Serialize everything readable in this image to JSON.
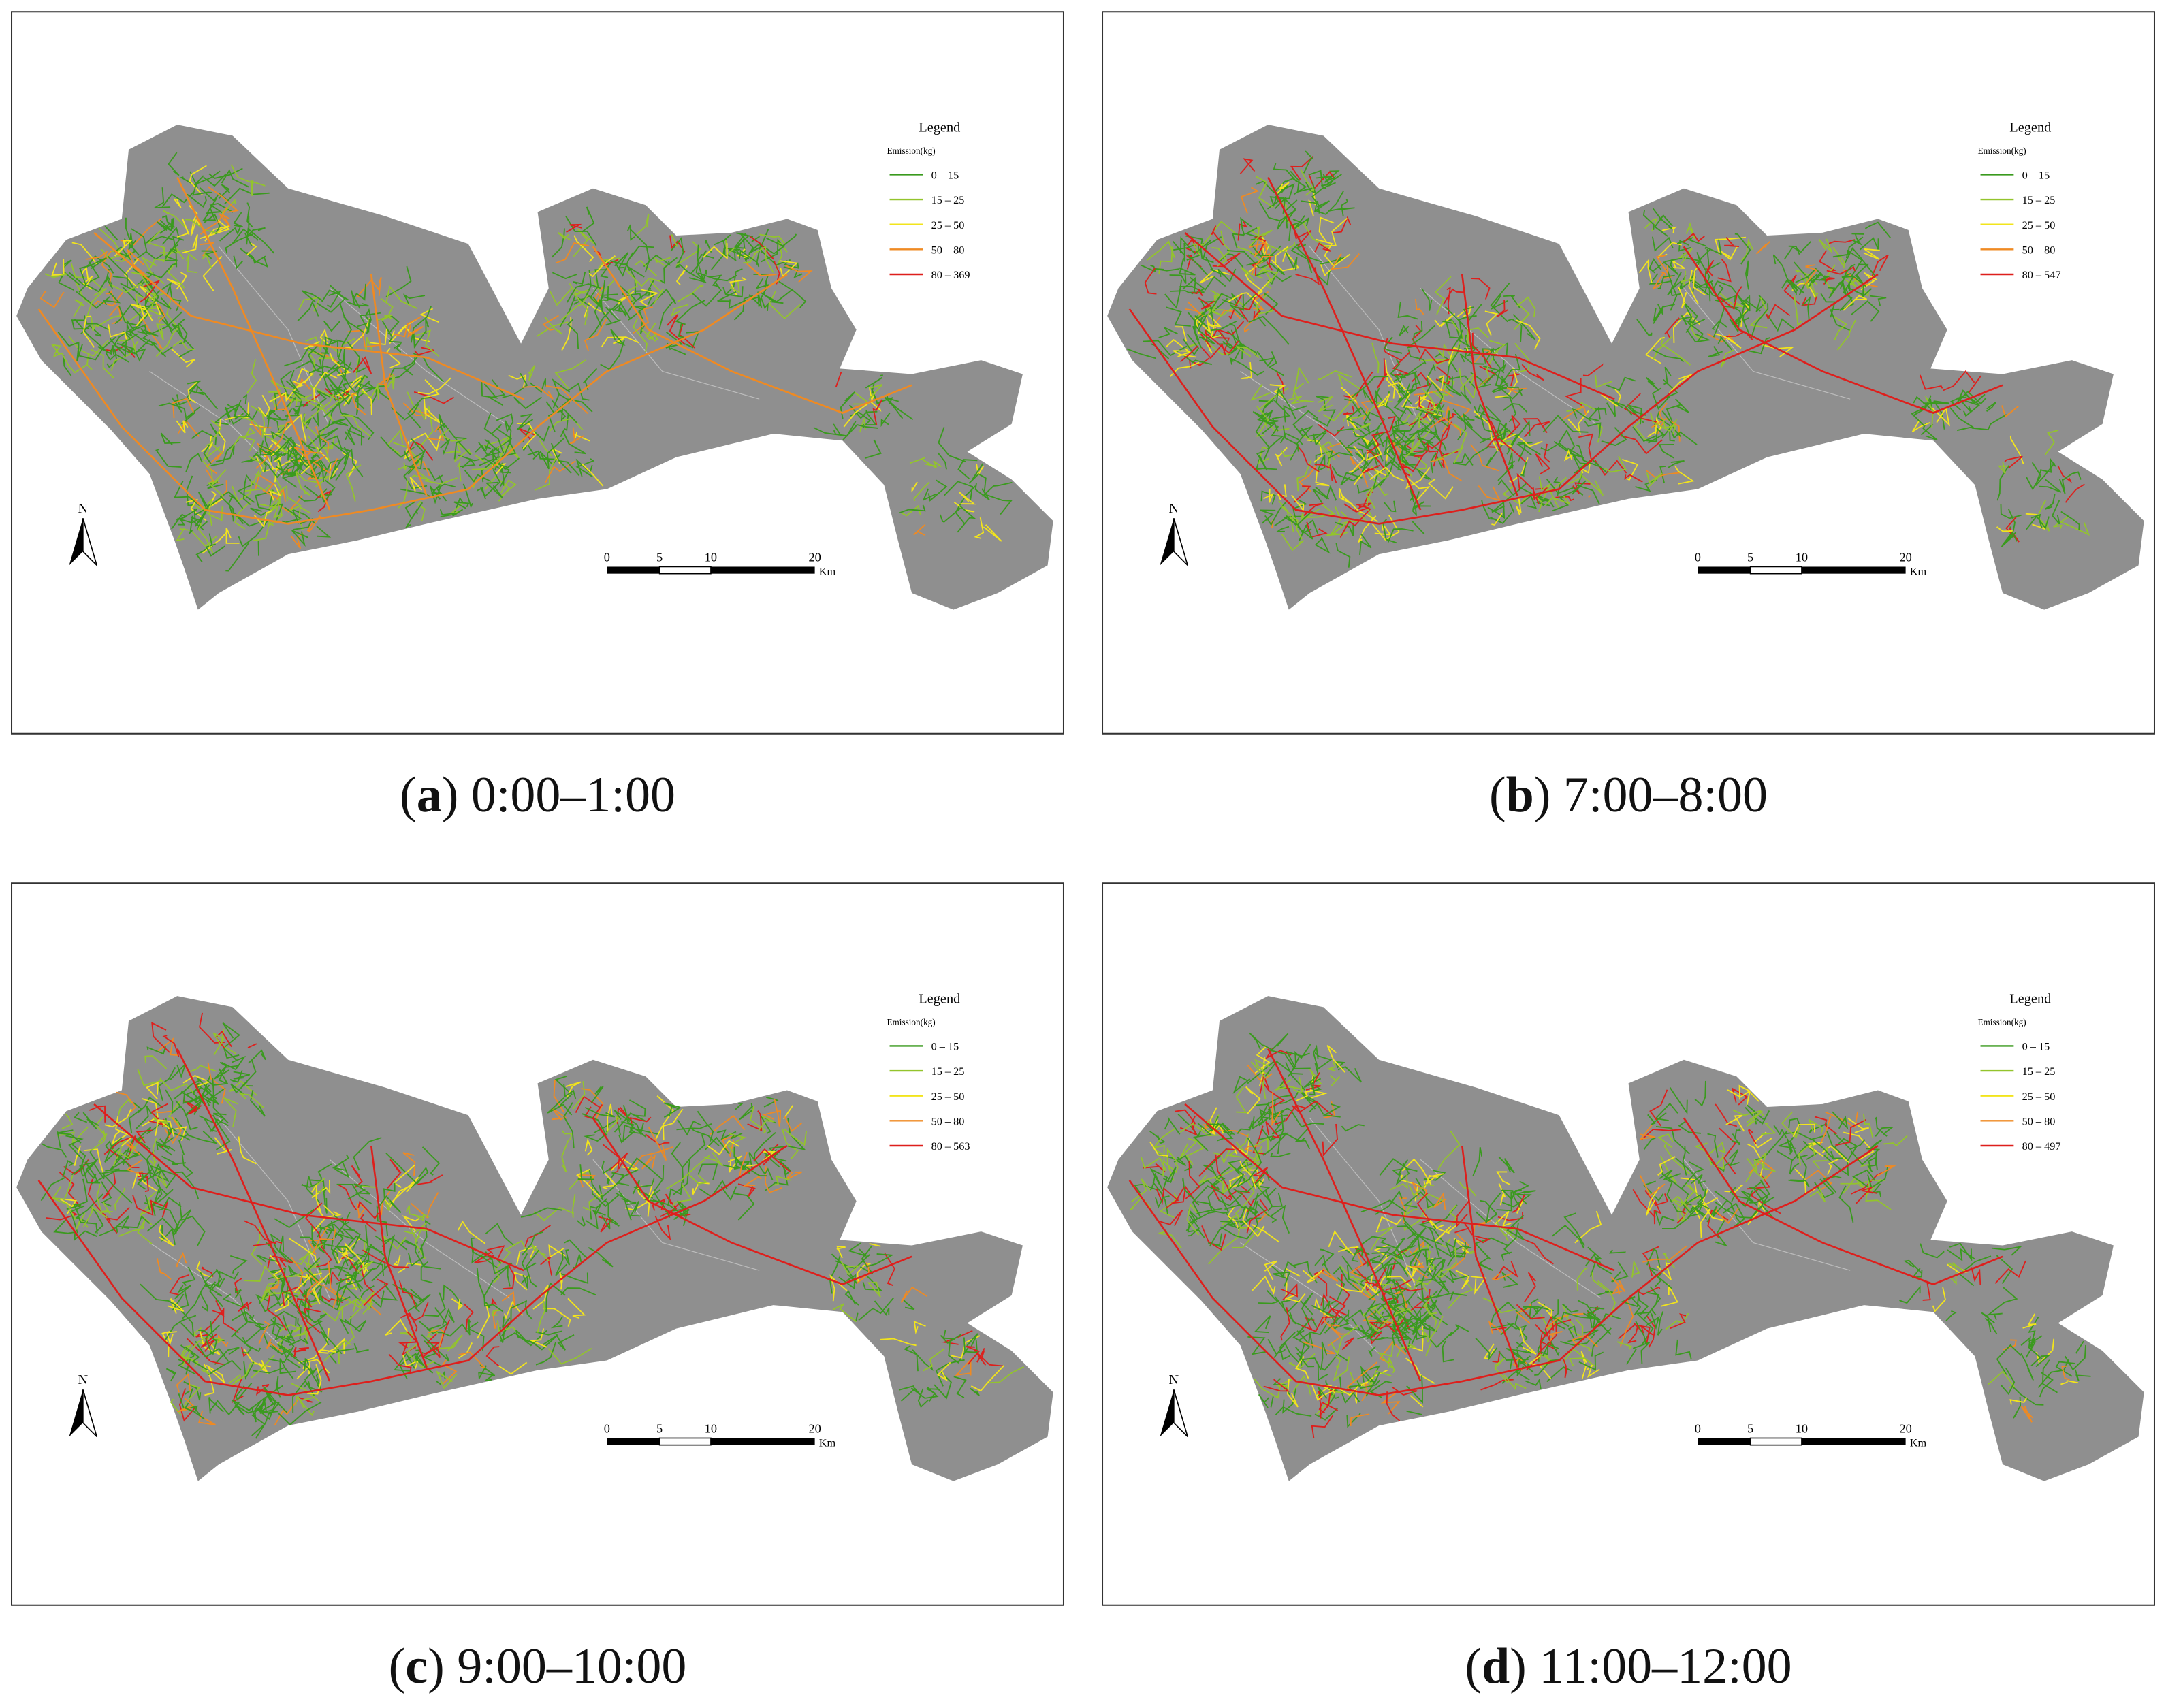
{
  "panels": [
    {
      "caption": {
        "open": "(",
        "label": "a",
        "close": ")",
        "time": "0:00–1:00"
      },
      "legend": {
        "title": "Legend",
        "subtitle": "Emission(kg)",
        "classes": [
          {
            "label": "0 – 15",
            "color": "#3a9a1e"
          },
          {
            "label": "15 – 25",
            "color": "#93c42c"
          },
          {
            "label": "25 – 50",
            "color": "#f2e41c"
          },
          {
            "label": "50 – 80",
            "color": "#ef8a22"
          },
          {
            "label": "80 – 369",
            "color": "#de1f1c"
          }
        ]
      },
      "scale": {
        "ticks": [
          "0",
          "5",
          "10",
          "20"
        ],
        "unit": "Km"
      },
      "north": "N"
    },
    {
      "caption": {
        "open": "(",
        "label": "b",
        "close": ")",
        "time": "7:00–8:00"
      },
      "legend": {
        "title": "Legend",
        "subtitle": "Emission(kg)",
        "classes": [
          {
            "label": "0 – 15",
            "color": "#3a9a1e"
          },
          {
            "label": "15 – 25",
            "color": "#93c42c"
          },
          {
            "label": "25 – 50",
            "color": "#f2e41c"
          },
          {
            "label": "50 – 80",
            "color": "#ef8a22"
          },
          {
            "label": "80 – 547",
            "color": "#de1f1c"
          }
        ]
      },
      "scale": {
        "ticks": [
          "0",
          "5",
          "10",
          "20"
        ],
        "unit": "Km"
      },
      "north": "N"
    },
    {
      "caption": {
        "open": "(",
        "label": "c",
        "close": ")",
        "time": "9:00–10:00"
      },
      "legend": {
        "title": "Legend",
        "subtitle": "Emission(kg)",
        "classes": [
          {
            "label": "0 – 15",
            "color": "#3a9a1e"
          },
          {
            "label": "15 – 25",
            "color": "#93c42c"
          },
          {
            "label": "25 – 50",
            "color": "#f2e41c"
          },
          {
            "label": "50 – 80",
            "color": "#ef8a22"
          },
          {
            "label": "80 – 563",
            "color": "#de1f1c"
          }
        ]
      },
      "scale": {
        "ticks": [
          "0",
          "5",
          "10",
          "20"
        ],
        "unit": "Km"
      },
      "north": "N"
    },
    {
      "caption": {
        "open": "(",
        "label": "d",
        "close": ")",
        "time": "11:00–12:00"
      },
      "legend": {
        "title": "Legend",
        "subtitle": "Emission(kg)",
        "classes": [
          {
            "label": "0 – 15",
            "color": "#3a9a1e"
          },
          {
            "label": "15 – 25",
            "color": "#93c42c"
          },
          {
            "label": "25 – 50",
            "color": "#f2e41c"
          },
          {
            "label": "50 – 80",
            "color": "#ef8a22"
          },
          {
            "label": "80 – 497",
            "color": "#de1f1c"
          }
        ]
      },
      "scale": {
        "ticks": [
          "0",
          "5",
          "10",
          "20"
        ],
        "unit": "Km"
      },
      "north": "N"
    }
  ]
}
